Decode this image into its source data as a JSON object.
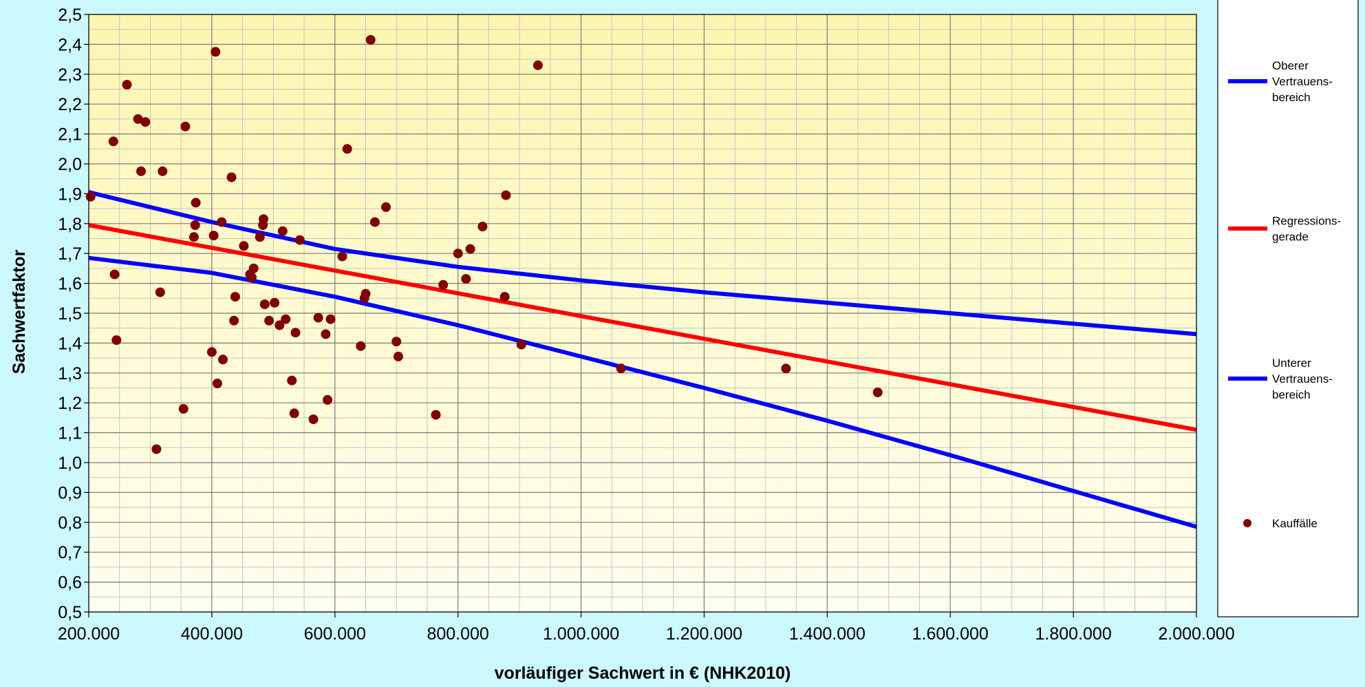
{
  "chart_data": {
    "type": "scatter",
    "xlabel": "vorläufiger Sachwert in € (NHK2010)",
    "ylabel": "Sachwertfaktor",
    "xlim": [
      200000,
      2000000
    ],
    "ylim": [
      0.5,
      2.5
    ],
    "x_ticks": [
      "200.000",
      "400.000",
      "600.000",
      "800.000",
      "1.000.000",
      "1.200.000",
      "1.400.000",
      "1.600.000",
      "1.800.000",
      "2.000.000"
    ],
    "y_ticks": [
      "0,5",
      "0,6",
      "0,7",
      "0,8",
      "0,9",
      "1,0",
      "1,1",
      "1,2",
      "1,3",
      "1,4",
      "1,5",
      "1,6",
      "1,7",
      "1,8",
      "1,9",
      "2,0",
      "2,1",
      "2,2",
      "2,3",
      "2,4",
      "2,5"
    ],
    "grid": true,
    "legend_position": "right",
    "series": [
      {
        "name": "Oberer Vertrauens-bereich",
        "legend_lines": [
          "Oberer",
          "Vertrauens-",
          "bereich"
        ],
        "kind": "line",
        "color": "#0000ff",
        "points": [
          [
            200000,
            1.905
          ],
          [
            400000,
            1.805
          ],
          [
            600000,
            1.715
          ],
          [
            800000,
            1.655
          ],
          [
            1000000,
            1.61
          ],
          [
            1200000,
            1.57
          ],
          [
            1400000,
            1.535
          ],
          [
            1600000,
            1.5
          ],
          [
            1800000,
            1.465
          ],
          [
            2000000,
            1.43
          ]
        ]
      },
      {
        "name": "Regressions-gerade",
        "legend_lines": [
          "Regressions-",
          "gerade"
        ],
        "kind": "line",
        "color": "#ff0000",
        "points": [
          [
            200000,
            1.795
          ],
          [
            2000000,
            1.11
          ]
        ]
      },
      {
        "name": "Unterer Vertrauens-bereich",
        "legend_lines": [
          "Unterer",
          "Vertrauens-",
          "bereich"
        ],
        "kind": "line",
        "color": "#0000ff",
        "points": [
          [
            200000,
            1.685
          ],
          [
            400000,
            1.635
          ],
          [
            600000,
            1.555
          ],
          [
            800000,
            1.46
          ],
          [
            1000000,
            1.355
          ],
          [
            1200000,
            1.25
          ],
          [
            1400000,
            1.14
          ],
          [
            1600000,
            1.025
          ],
          [
            1800000,
            0.905
          ],
          [
            2000000,
            0.785
          ]
        ]
      },
      {
        "name": "Kauffälle",
        "legend_lines": [
          "Kauffälle"
        ],
        "kind": "scatter",
        "color": "#800000",
        "points": [
          [
            203000,
            1.89
          ],
          [
            240000,
            2.075
          ],
          [
            242000,
            1.63
          ],
          [
            245000,
            1.41
          ],
          [
            262000,
            2.265
          ],
          [
            280000,
            2.15
          ],
          [
            285000,
            1.975
          ],
          [
            292000,
            2.14
          ],
          [
            310000,
            1.045
          ],
          [
            316000,
            1.57
          ],
          [
            320000,
            1.975
          ],
          [
            354000,
            1.18
          ],
          [
            357000,
            2.125
          ],
          [
            371000,
            1.755
          ],
          [
            373000,
            1.795
          ],
          [
            374000,
            1.87
          ],
          [
            400000,
            1.37
          ],
          [
            403000,
            1.76
          ],
          [
            406000,
            2.375
          ],
          [
            409000,
            1.265
          ],
          [
            416000,
            1.805
          ],
          [
            418000,
            1.345
          ],
          [
            432000,
            1.955
          ],
          [
            436000,
            1.475
          ],
          [
            438000,
            1.555
          ],
          [
            452000,
            1.725
          ],
          [
            462000,
            1.63
          ],
          [
            465000,
            1.62
          ],
          [
            468000,
            1.65
          ],
          [
            478000,
            1.755
          ],
          [
            483000,
            1.795
          ],
          [
            484000,
            1.815
          ],
          [
            486000,
            1.53
          ],
          [
            493000,
            1.475
          ],
          [
            502000,
            1.535
          ],
          [
            510000,
            1.46
          ],
          [
            515000,
            1.775
          ],
          [
            520000,
            1.48
          ],
          [
            530000,
            1.275
          ],
          [
            534000,
            1.165
          ],
          [
            536000,
            1.435
          ],
          [
            543000,
            1.745
          ],
          [
            565000,
            1.145
          ],
          [
            573000,
            1.485
          ],
          [
            585000,
            1.43
          ],
          [
            588000,
            1.21
          ],
          [
            593000,
            1.48
          ],
          [
            612000,
            1.69
          ],
          [
            620000,
            2.05
          ],
          [
            642000,
            1.39
          ],
          [
            648000,
            1.55
          ],
          [
            650000,
            1.565
          ],
          [
            658000,
            2.415
          ],
          [
            665000,
            1.805
          ],
          [
            683000,
            1.855
          ],
          [
            700000,
            1.405
          ],
          [
            703000,
            1.355
          ],
          [
            764000,
            1.16
          ],
          [
            776000,
            1.595
          ],
          [
            800000,
            1.7
          ],
          [
            813000,
            1.615
          ],
          [
            820000,
            1.715
          ],
          [
            840000,
            1.79
          ],
          [
            876000,
            1.555
          ],
          [
            878000,
            1.895
          ],
          [
            903000,
            1.395
          ],
          [
            930000,
            2.33
          ],
          [
            1065000,
            1.315
          ],
          [
            1333000,
            1.315
          ],
          [
            1482000,
            1.235
          ]
        ]
      }
    ]
  }
}
